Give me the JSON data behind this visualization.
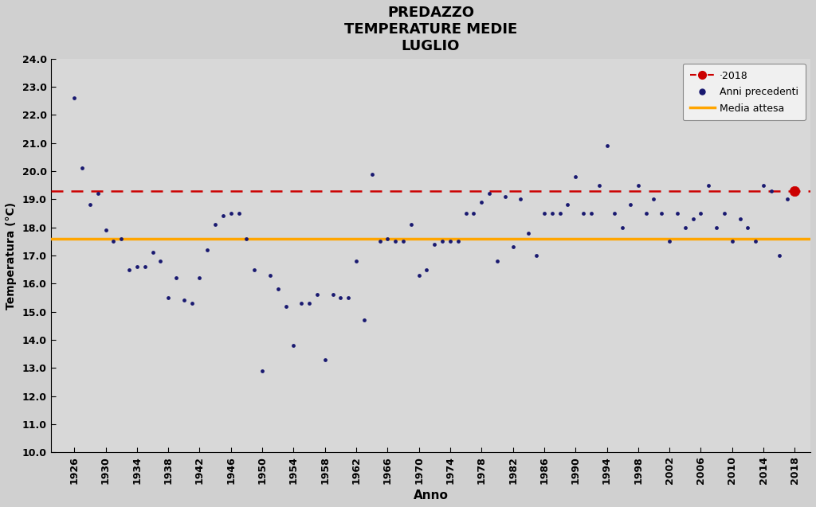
{
  "title": "PREDAZZO\nTEMPERATURE MEDIE\nLUGLIO",
  "xlabel": "Anno",
  "ylabel": "Temperatura (°C)",
  "ylim": [
    10.0,
    24.0
  ],
  "ytick_step": 1.0,
  "yticks": [
    10.0,
    11.0,
    12.0,
    13.0,
    14.0,
    15.0,
    16.0,
    17.0,
    18.0,
    19.0,
    20.0,
    21.0,
    22.0,
    23.0,
    24.0
  ],
  "xlim": [
    1923,
    2020
  ],
  "xticks": [
    1926,
    1930,
    1934,
    1938,
    1942,
    1946,
    1950,
    1954,
    1958,
    1962,
    1966,
    1970,
    1974,
    1978,
    1982,
    1986,
    1990,
    1994,
    1998,
    2002,
    2006,
    2010,
    2014,
    2018
  ],
  "media_attesa": 17.6,
  "value_2018": 19.3,
  "dashed_line_value": 19.3,
  "bg_color": "#d0d0d0",
  "plot_bg_color": "#d8d8d8",
  "dot_color_prev": "#191970",
  "dot_color_2018": "#cc0000",
  "dashed_color": "#cc0000",
  "media_color": "#FFA500",
  "legend_2018": "·2018",
  "legend_prev": "Anni precedenti",
  "legend_media": "Media attesa",
  "years": [
    1926,
    1927,
    1928,
    1929,
    1930,
    1931,
    1932,
    1933,
    1934,
    1935,
    1936,
    1937,
    1938,
    1939,
    1940,
    1941,
    1942,
    1943,
    1944,
    1945,
    1946,
    1947,
    1948,
    1949,
    1950,
    1951,
    1952,
    1953,
    1954,
    1955,
    1956,
    1957,
    1958,
    1959,
    1960,
    1961,
    1962,
    1963,
    1964,
    1965,
    1966,
    1967,
    1968,
    1969,
    1970,
    1971,
    1972,
    1973,
    1974,
    1975,
    1976,
    1977,
    1978,
    1979,
    1980,
    1981,
    1982,
    1983,
    1984,
    1985,
    1986,
    1987,
    1988,
    1989,
    1990,
    1991,
    1992,
    1993,
    1994,
    1995,
    1996,
    1997,
    1998,
    1999,
    2000,
    2001,
    2002,
    2003,
    2004,
    2005,
    2006,
    2007,
    2008,
    2009,
    2010,
    2011,
    2012,
    2013,
    2014,
    2015,
    2016,
    2017
  ],
  "temps": [
    22.6,
    20.1,
    18.8,
    19.2,
    17.9,
    17.5,
    17.6,
    16.5,
    16.6,
    16.6,
    17.1,
    16.8,
    15.5,
    16.2,
    15.4,
    15.3,
    16.2,
    17.2,
    18.1,
    18.4,
    18.5,
    18.5,
    17.6,
    16.5,
    12.9,
    16.3,
    15.8,
    15.2,
    13.8,
    15.3,
    15.3,
    15.6,
    13.3,
    15.6,
    15.5,
    15.5,
    16.8,
    14.7,
    19.9,
    17.5,
    17.6,
    17.5,
    17.5,
    18.1,
    16.3,
    16.5,
    17.4,
    17.5,
    17.5,
    17.5,
    18.5,
    18.5,
    18.9,
    19.2,
    16.8,
    19.1,
    17.3,
    19.0,
    17.8,
    17.0,
    18.5,
    18.5,
    18.5,
    18.8,
    19.8,
    18.5,
    18.5,
    19.5,
    20.9,
    18.5,
    18.0,
    18.8,
    19.5,
    18.5,
    19.0,
    18.5,
    17.5,
    18.5,
    18.0,
    18.3,
    18.5,
    19.5,
    18.0,
    18.5,
    17.5,
    18.3,
    18.0,
    17.5,
    19.5,
    19.3,
    17.0,
    19.0
  ]
}
